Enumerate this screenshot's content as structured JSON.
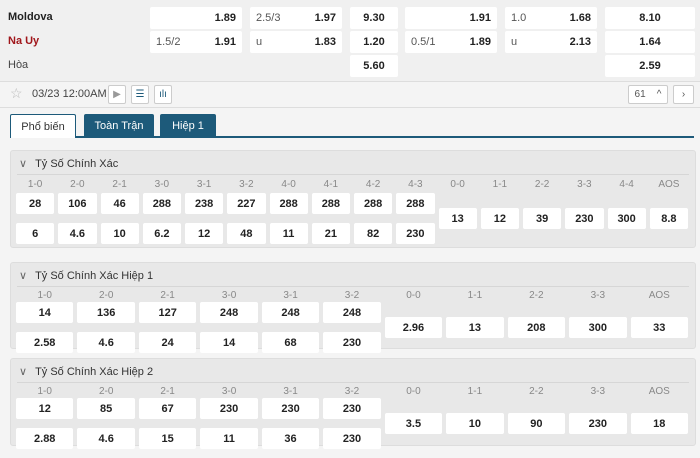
{
  "match": {
    "teams": [
      {
        "name": "Moldova",
        "color": "#222222",
        "cells": [
          [
            "",
            "1.89"
          ],
          [
            "2.5/3",
            "1.97"
          ],
          [
            "",
            "9.30"
          ],
          [
            "",
            "1.91"
          ],
          [
            "1.0",
            "1.68"
          ],
          [
            "",
            "8.10"
          ]
        ]
      },
      {
        "name": "Na Uy",
        "color": "#a0161b",
        "cells": [
          [
            "1.5/2",
            "1.91"
          ],
          [
            "u",
            "1.83"
          ],
          [
            "",
            "1.20"
          ],
          [
            "0.5/1",
            "1.89"
          ],
          [
            "u",
            "2.13"
          ],
          [
            "",
            "1.64"
          ]
        ]
      },
      {
        "name": "Hòa",
        "color": "#444444",
        "cells": [
          null,
          null,
          [
            "",
            "5.60"
          ],
          null,
          null,
          [
            "",
            "2.59"
          ]
        ]
      }
    ]
  },
  "toolbar": {
    "star_icon": "star-icon",
    "datetime": "03/23 12:00AM",
    "count": "61"
  },
  "tabs": [
    {
      "label": "Phổ biến",
      "active": true
    },
    {
      "label": "Toàn Trận"
    },
    {
      "label": "Hiệp 1"
    }
  ],
  "sections": [
    {
      "title": "Tỷ Số Chính Xác",
      "home_labels": [
        "1-0",
        "2-0",
        "2-1",
        "3-0",
        "3-1",
        "3-2",
        "4-0",
        "4-1",
        "4-2",
        "4-3"
      ],
      "home_odds": [
        "28",
        "106",
        "46",
        "288",
        "238",
        "227",
        "288",
        "288",
        "288",
        "288"
      ],
      "away_odds": [
        "6",
        "4.6",
        "10",
        "6.2",
        "12",
        "48",
        "11",
        "21",
        "82",
        "230"
      ],
      "draw_labels": [
        "0-0",
        "1-1",
        "2-2",
        "3-3",
        "4-4",
        "AOS"
      ],
      "draw_odds": [
        "13",
        "12",
        "39",
        "230",
        "300",
        "8.8"
      ]
    },
    {
      "title": "Tỷ Số Chính Xác Hiệp 1",
      "home_labels": [
        "1-0",
        "2-0",
        "2-1",
        "3-0",
        "3-1",
        "3-2"
      ],
      "home_odds": [
        "14",
        "136",
        "127",
        "248",
        "248",
        "248"
      ],
      "away_odds": [
        "2.58",
        "4.6",
        "24",
        "14",
        "68",
        "230"
      ],
      "draw_labels": [
        "0-0",
        "1-1",
        "2-2",
        "3-3",
        "AOS"
      ],
      "draw_odds": [
        "2.96",
        "13",
        "208",
        "300",
        "33"
      ]
    },
    {
      "title": "Tỷ Số Chính Xác Hiệp 2",
      "home_labels": [
        "1-0",
        "2-0",
        "2-1",
        "3-0",
        "3-1",
        "3-2"
      ],
      "home_odds": [
        "12",
        "85",
        "67",
        "230",
        "230",
        "230"
      ],
      "away_odds": [
        "2.88",
        "4.6",
        "15",
        "11",
        "36",
        "230"
      ],
      "draw_labels": [
        "0-0",
        "1-1",
        "2-2",
        "3-3",
        "AOS"
      ],
      "draw_odds": [
        "3.5",
        "10",
        "90",
        "230",
        "18"
      ]
    }
  ]
}
